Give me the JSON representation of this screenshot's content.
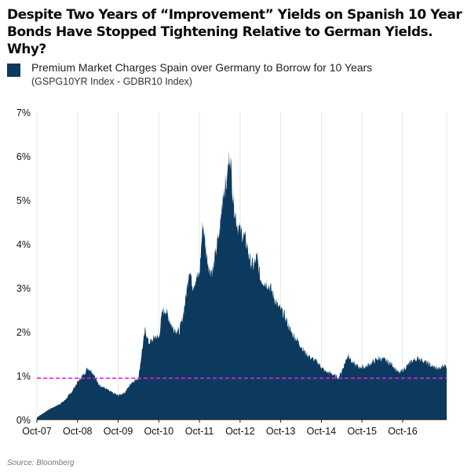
{
  "title_line1": "Despite Two Years of “Improvement” Yields on Spanish 10 Year",
  "title_line2": "Bonds Have Stopped Tightening Relative to German Yields. Why?",
  "source": "Source: Bloomberg",
  "colors": {
    "area": "#0c3a5e",
    "reference_line": "#e020e0",
    "grid": "#e6e6e6"
  },
  "chart_data": {
    "type": "area",
    "legend": {
      "label": "Premium Market Charges Spain over Germany to Borrow for 10 Years",
      "sublabel": "(GSPG10YR Index - GDBR10 Index)",
      "placement": "top-left"
    },
    "x_ticks": [
      "Oct-07",
      "Oct-08",
      "Oct-09",
      "Oct-10",
      "Oct-11",
      "Oct-12",
      "Oct-13",
      "Oct-14",
      "Oct-15",
      "Oct-16"
    ],
    "y_ticks": [
      "0%",
      "1%",
      "2%",
      "3%",
      "4%",
      "5%",
      "6%",
      "7%"
    ],
    "ylim": [
      0,
      7
    ],
    "grid": "vertical",
    "reference_line": {
      "value": 0.94,
      "style": "dashed"
    },
    "series": [
      {
        "values": [
          [
            "2007-10",
            0.05
          ],
          [
            "2007-12",
            0.15
          ],
          [
            "2008-02",
            0.25
          ],
          [
            "2008-04",
            0.32
          ],
          [
            "2008-06",
            0.42
          ],
          [
            "2008-08",
            0.6
          ],
          [
            "2008-10",
            0.85
          ],
          [
            "2008-12",
            1.05
          ],
          [
            "2009-01",
            1.18
          ],
          [
            "2009-02",
            1.12
          ],
          [
            "2009-03",
            1.02
          ],
          [
            "2009-04",
            0.82
          ],
          [
            "2009-06",
            0.72
          ],
          [
            "2009-08",
            0.62
          ],
          [
            "2009-10",
            0.55
          ],
          [
            "2009-12",
            0.62
          ],
          [
            "2010-02",
            0.85
          ],
          [
            "2010-04",
            0.95
          ],
          [
            "2010-05",
            1.55
          ],
          [
            "2010-06",
            2.05
          ],
          [
            "2010-07",
            1.75
          ],
          [
            "2010-08",
            1.8
          ],
          [
            "2010-09",
            1.9
          ],
          [
            "2010-10",
            1.85
          ],
          [
            "2010-11",
            2.45
          ],
          [
            "2010-12",
            2.5
          ],
          [
            "2011-01",
            2.3
          ],
          [
            "2011-02",
            2.1
          ],
          [
            "2011-03",
            2.05
          ],
          [
            "2011-04",
            2.0
          ],
          [
            "2011-05",
            2.3
          ],
          [
            "2011-06",
            2.8
          ],
          [
            "2011-07",
            3.45
          ],
          [
            "2011-08",
            3.05
          ],
          [
            "2011-09",
            3.2
          ],
          [
            "2011-10",
            3.3
          ],
          [
            "2011-11",
            4.5
          ],
          [
            "2011-12",
            3.8
          ],
          [
            "2012-01",
            3.4
          ],
          [
            "2012-02",
            3.4
          ],
          [
            "2012-03",
            3.9
          ],
          [
            "2012-04",
            4.3
          ],
          [
            "2012-05",
            5.2
          ],
          [
            "2012-06",
            5.4
          ],
          [
            "2012-07",
            6.1
          ],
          [
            "2012-08",
            5.0
          ],
          [
            "2012-09",
            4.5
          ],
          [
            "2012-10",
            4.3
          ],
          [
            "2012-11",
            4.2
          ],
          [
            "2012-12",
            4.0
          ],
          [
            "2013-01",
            3.6
          ],
          [
            "2013-02",
            3.5
          ],
          [
            "2013-03",
            3.7
          ],
          [
            "2013-04",
            3.2
          ],
          [
            "2013-06",
            3.1
          ],
          [
            "2013-07",
            3.0
          ],
          [
            "2013-09",
            2.6
          ],
          [
            "2013-11",
            2.4
          ],
          [
            "2014-01",
            2.0
          ],
          [
            "2014-03",
            1.8
          ],
          [
            "2014-05",
            1.55
          ],
          [
            "2014-07",
            1.4
          ],
          [
            "2014-09",
            1.3
          ],
          [
            "2014-11",
            1.1
          ],
          [
            "2015-01",
            1.05
          ],
          [
            "2015-03",
            0.95
          ],
          [
            "2015-04",
            1.1
          ],
          [
            "2015-06",
            1.5
          ],
          [
            "2015-07",
            1.3
          ],
          [
            "2015-09",
            1.2
          ],
          [
            "2015-11",
            1.2
          ],
          [
            "2016-01",
            1.3
          ],
          [
            "2016-03",
            1.4
          ],
          [
            "2016-05",
            1.35
          ],
          [
            "2016-07",
            1.25
          ],
          [
            "2016-09",
            1.05
          ],
          [
            "2016-11",
            1.2
          ],
          [
            "2017-01",
            1.35
          ],
          [
            "2017-03",
            1.4
          ],
          [
            "2017-05",
            1.3
          ],
          [
            "2017-07",
            1.2
          ],
          [
            "2017-09",
            1.15
          ],
          [
            "2017-10",
            1.25
          ],
          [
            "2017-11",
            1.2
          ]
        ]
      }
    ]
  }
}
